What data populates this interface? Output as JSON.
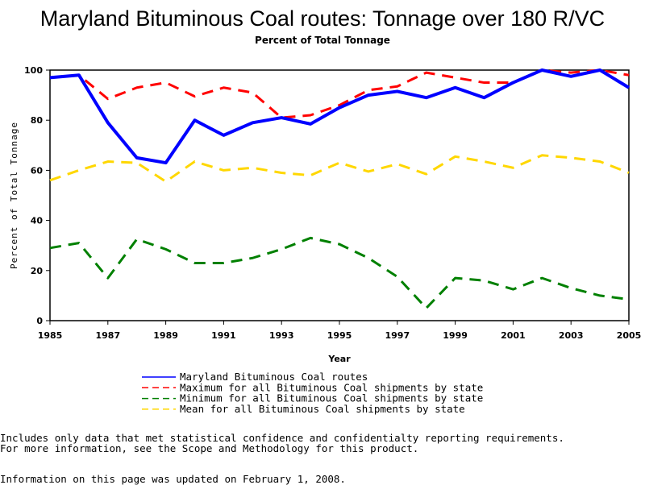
{
  "chart_data": {
    "type": "line",
    "title": "Maryland Bituminous Coal routes: Tonnage over 180 R/VC",
    "subtitle": "Percent of Total Tonnage",
    "xlabel": "Year",
    "ylabel": "Percent of Total Tonnage",
    "xlim": [
      1985,
      2005
    ],
    "ylim": [
      0,
      100
    ],
    "x_ticks": [
      "1985",
      "1987",
      "1989",
      "1991",
      "1993",
      "1995",
      "1997",
      "1999",
      "2001",
      "2003",
      "2005"
    ],
    "y_ticks": [
      "0",
      "20",
      "40",
      "60",
      "80",
      "100"
    ],
    "x": [
      1985,
      1986,
      1987,
      1988,
      1989,
      1990,
      1991,
      1992,
      1993,
      1994,
      1995,
      1996,
      1997,
      1998,
      1999,
      2000,
      2001,
      2002,
      2003,
      2004,
      2005
    ],
    "series": [
      {
        "name": "Maryland Bituminous Coal routes",
        "color": "#0000ff",
        "style": "solid",
        "values": [
          97,
          98,
          79,
          65,
          63,
          80,
          74,
          79,
          81,
          78.5,
          85,
          90,
          91.5,
          89,
          93,
          89,
          95,
          100,
          97.5,
          100,
          93
        ]
      },
      {
        "name": "Maximum for all Bituminous Coal shipments by state",
        "color": "#ff0000",
        "style": "dashed",
        "values": [
          97,
          98,
          88.5,
          93,
          95,
          89.5,
          93,
          91,
          81,
          82,
          86,
          92,
          93.5,
          99,
          97,
          95,
          95,
          100,
          99,
          100,
          98
        ]
      },
      {
        "name": "Minimum for all Bituminous Coal shipments by state",
        "color": "#008000",
        "style": "dashed",
        "values": [
          29,
          31,
          17,
          32.5,
          28.5,
          23,
          23,
          25,
          28.5,
          33,
          30.5,
          25,
          17.5,
          5,
          17,
          16,
          12.5,
          17,
          13,
          10,
          8.5
        ]
      },
      {
        "name": "Mean for all Bituminous Coal shipments by state",
        "color": "#ffd700",
        "style": "dashed",
        "values": [
          56,
          60,
          63.5,
          63,
          55.5,
          63.5,
          60,
          61,
          59,
          58,
          63,
          59.5,
          62.5,
          58.5,
          65.5,
          63.5,
          61,
          66,
          65,
          63.5,
          59
        ]
      }
    ],
    "legend_position": "bottom"
  },
  "footnotes": {
    "line1": "Includes only data that met statistical confidence and confidentialty reporting requirements.",
    "line2": "For more information, see the Scope and Methodology for this product.",
    "updated": "Information on this page was updated on February 1, 2008."
  }
}
